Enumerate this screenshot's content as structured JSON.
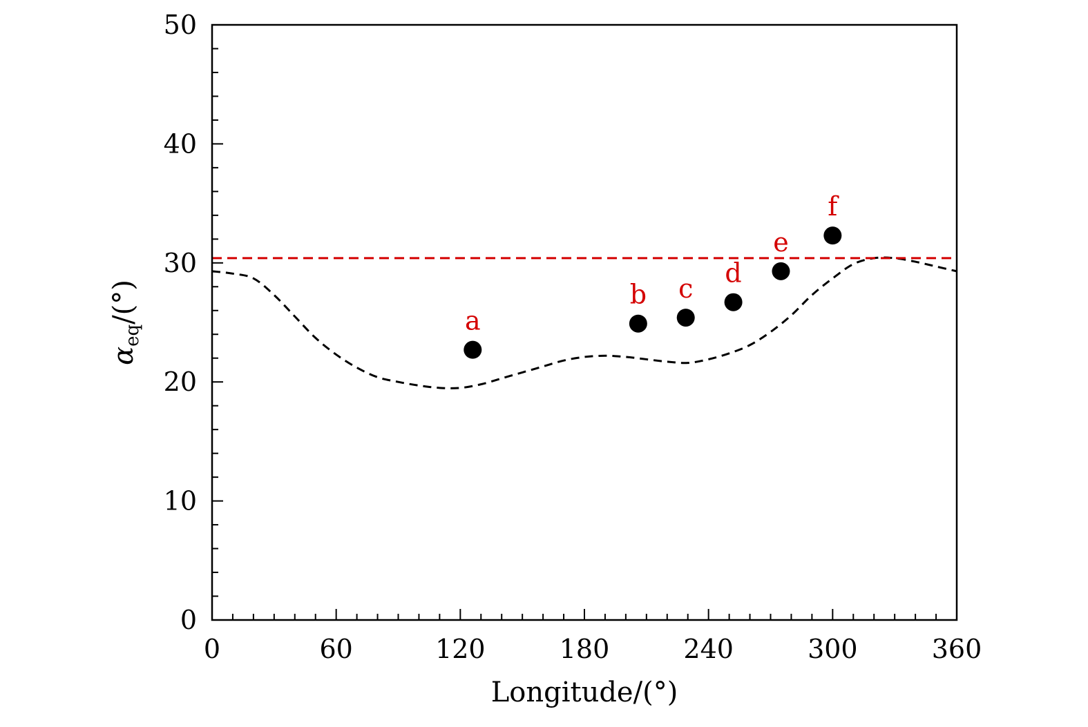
{
  "chart_data": {
    "type": "scatter",
    "xlabel": "Longitude/(°)",
    "ylabel_main": "α",
    "ylabel_sub": "eq",
    "ylabel_tail": "/(°)",
    "xlim": [
      0,
      360
    ],
    "ylim": [
      0,
      50
    ],
    "xticks": [
      0,
      60,
      120,
      180,
      240,
      300,
      360
    ],
    "yticks": [
      0,
      10,
      20,
      30,
      40,
      50
    ],
    "x_minor_step": 10,
    "y_minor_step": 2,
    "grid": false,
    "colors": {
      "points": "#000000",
      "labels": "#d40000",
      "threshold": "#d40000",
      "curve": "#000000"
    },
    "points": [
      {
        "label": "a",
        "x": 126,
        "y": 22.7
      },
      {
        "label": "b",
        "x": 206,
        "y": 24.9
      },
      {
        "label": "c",
        "x": 229,
        "y": 25.4
      },
      {
        "label": "d",
        "x": 252,
        "y": 26.7
      },
      {
        "label": "e",
        "x": 275,
        "y": 29.3
      },
      {
        "label": "f",
        "x": 300,
        "y": 32.3
      }
    ],
    "threshold_line": {
      "y": 30.4,
      "style": "dashed"
    },
    "curve": {
      "style": "dashed",
      "x": [
        0,
        10,
        20,
        30,
        40,
        50,
        60,
        70,
        80,
        90,
        100,
        110,
        120,
        130,
        140,
        150,
        160,
        170,
        180,
        190,
        200,
        210,
        220,
        230,
        240,
        250,
        260,
        270,
        280,
        290,
        300,
        310,
        320,
        330,
        340,
        350,
        360
      ],
      "y": [
        29.3,
        29.1,
        28.7,
        27.3,
        25.5,
        23.7,
        22.3,
        21.2,
        20.4,
        20.0,
        19.7,
        19.5,
        19.5,
        19.8,
        20.3,
        20.8,
        21.3,
        21.8,
        22.1,
        22.2,
        22.1,
        21.9,
        21.7,
        21.6,
        21.9,
        22.4,
        23.1,
        24.2,
        25.6,
        27.3,
        28.7,
        29.9,
        30.4,
        30.4,
        30.1,
        29.7,
        29.3
      ]
    }
  }
}
